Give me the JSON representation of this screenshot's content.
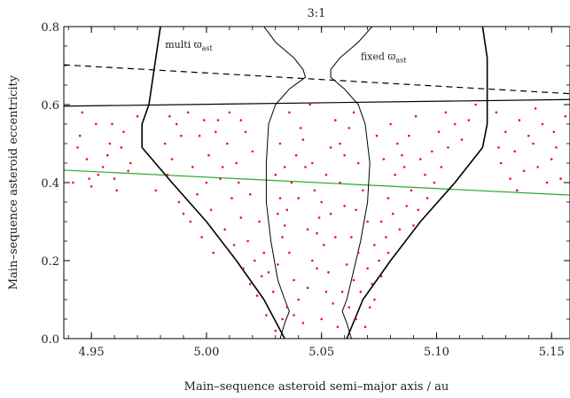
{
  "chart_data": {
    "type": "scatter",
    "title": "3:1",
    "xlabel": "Main–sequence asteroid semi–major axis / au",
    "ylabel": "Main–sequence asteroid eccentricity",
    "xlim": [
      4.938,
      5.158
    ],
    "ylim": [
      0.0,
      0.8
    ],
    "x_ticks": [
      4.95,
      5.0,
      5.05,
      5.1,
      5.15
    ],
    "x_tick_labels": [
      "4.95",
      "5.00",
      "5.05",
      "5.10",
      "5.15"
    ],
    "y_ticks": [
      0.0,
      0.2,
      0.4,
      0.6,
      0.8
    ],
    "y_tick_labels": [
      "0.0",
      "0.2",
      "0.4",
      "0.6",
      "0.8"
    ],
    "annotations": [
      {
        "text": "multi ϖ",
        "sub": "ast",
        "x": 4.982,
        "y": 0.745
      },
      {
        "text": "fixed ϖ",
        "sub": "ast",
        "x": 5.067,
        "y": 0.715
      }
    ],
    "colors": {
      "points": "#e8141c",
      "green_line": "#27a827",
      "lines": "#000000"
    },
    "lines": [
      {
        "style": "dashed",
        "color": "#000000",
        "points": [
          [
            4.938,
            0.702
          ],
          [
            5.158,
            0.628
          ]
        ]
      },
      {
        "style": "solid",
        "color": "#000000",
        "points": [
          [
            4.938,
            0.596
          ],
          [
            5.158,
            0.613
          ]
        ]
      },
      {
        "style": "solid",
        "color": "#27a827",
        "points": [
          [
            4.938,
            0.432
          ],
          [
            5.158,
            0.368
          ]
        ]
      }
    ],
    "boundaries": [
      {
        "name": "multi-left",
        "width": 1.6,
        "points": [
          [
            4.98,
            0.8
          ],
          [
            4.978,
            0.72
          ],
          [
            4.975,
            0.6
          ],
          [
            4.972,
            0.55
          ],
          [
            4.972,
            0.49
          ],
          [
            4.985,
            0.4
          ],
          [
            5.0,
            0.3
          ],
          [
            5.013,
            0.2
          ],
          [
            5.025,
            0.1
          ],
          [
            5.034,
            0.0
          ]
        ]
      },
      {
        "name": "multi-right",
        "width": 1.6,
        "points": [
          [
            5.12,
            0.8
          ],
          [
            5.122,
            0.72
          ],
          [
            5.122,
            0.6
          ],
          [
            5.122,
            0.55
          ],
          [
            5.12,
            0.49
          ],
          [
            5.108,
            0.4
          ],
          [
            5.093,
            0.3
          ],
          [
            5.08,
            0.2
          ],
          [
            5.068,
            0.1
          ],
          [
            5.061,
            0.0
          ]
        ]
      },
      {
        "name": "fixed-left",
        "width": 1.0,
        "points": [
          [
            5.025,
            0.8
          ],
          [
            5.03,
            0.76
          ],
          [
            5.038,
            0.72
          ],
          [
            5.042,
            0.69
          ],
          [
            5.043,
            0.67
          ],
          [
            5.036,
            0.64
          ],
          [
            5.03,
            0.6
          ],
          [
            5.027,
            0.55
          ],
          [
            5.026,
            0.45
          ],
          [
            5.026,
            0.35
          ],
          [
            5.028,
            0.25
          ],
          [
            5.031,
            0.15
          ],
          [
            5.034,
            0.1
          ],
          [
            5.036,
            0.07
          ],
          [
            5.034,
            0.04
          ],
          [
            5.032,
            0.0
          ]
        ]
      },
      {
        "name": "fixed-right",
        "width": 1.0,
        "points": [
          [
            5.072,
            0.8
          ],
          [
            5.066,
            0.76
          ],
          [
            5.058,
            0.72
          ],
          [
            5.054,
            0.69
          ],
          [
            5.054,
            0.67
          ],
          [
            5.06,
            0.64
          ],
          [
            5.066,
            0.6
          ],
          [
            5.069,
            0.55
          ],
          [
            5.071,
            0.45
          ],
          [
            5.07,
            0.35
          ],
          [
            5.067,
            0.25
          ],
          [
            5.063,
            0.15
          ],
          [
            5.061,
            0.1
          ],
          [
            5.059,
            0.07
          ],
          [
            5.061,
            0.04
          ],
          [
            5.063,
            0.0
          ]
        ]
      }
    ],
    "series": [
      {
        "values": [
          [
            4.945,
            0.52
          ],
          [
            4.952,
            0.55
          ],
          [
            4.958,
            0.5
          ],
          [
            4.963,
            0.49
          ],
          [
            4.948,
            0.46
          ],
          [
            4.955,
            0.44
          ],
          [
            4.96,
            0.41
          ],
          [
            4.966,
            0.43
          ],
          [
            4.942,
            0.4
          ],
          [
            4.95,
            0.39
          ],
          [
            4.957,
            0.47
          ],
          [
            4.964,
            0.53
          ],
          [
            4.97,
            0.57
          ],
          [
            4.946,
            0.58
          ],
          [
            4.953,
            0.42
          ],
          [
            4.961,
            0.38
          ],
          [
            4.967,
            0.45
          ],
          [
            4.944,
            0.49
          ],
          [
            4.959,
            0.55
          ],
          [
            4.949,
            0.41
          ],
          [
            4.978,
            0.38
          ],
          [
            4.983,
            0.42
          ],
          [
            4.988,
            0.35
          ],
          [
            4.993,
            0.3
          ],
          [
            4.998,
            0.26
          ],
          [
            5.003,
            0.22
          ],
          [
            4.99,
            0.32
          ],
          [
            4.996,
            0.37
          ],
          [
            5.002,
            0.33
          ],
          [
            5.008,
            0.28
          ],
          [
            5.012,
            0.24
          ],
          [
            5.016,
            0.18
          ],
          [
            5.019,
            0.14
          ],
          [
            5.022,
            0.11
          ],
          [
            5.006,
            0.41
          ],
          [
            5.011,
            0.36
          ],
          [
            5.015,
            0.31
          ],
          [
            5.018,
            0.25
          ],
          [
            5.021,
            0.2
          ],
          [
            5.024,
            0.16
          ],
          [
            4.982,
            0.5
          ],
          [
            4.987,
            0.55
          ],
          [
            4.992,
            0.58
          ],
          [
            4.997,
            0.52
          ],
          [
            5.001,
            0.47
          ],
          [
            5.005,
            0.56
          ],
          [
            5.009,
            0.5
          ],
          [
            5.013,
            0.45
          ],
          [
            5.017,
            0.53
          ],
          [
            5.02,
            0.48
          ],
          [
            4.985,
            0.46
          ],
          [
            4.994,
            0.44
          ],
          [
            5.0,
            0.4
          ],
          [
            5.007,
            0.44
          ],
          [
            5.014,
            0.4
          ],
          [
            5.019,
            0.37
          ],
          [
            5.023,
            0.3
          ],
          [
            5.025,
            0.22
          ],
          [
            5.027,
            0.17
          ],
          [
            5.026,
            0.06
          ],
          [
            5.03,
            0.02
          ],
          [
            5.033,
            0.05
          ],
          [
            5.035,
            0.08
          ],
          [
            5.029,
            0.12
          ],
          [
            5.031,
            0.19
          ],
          [
            5.033,
            0.26
          ],
          [
            5.035,
            0.33
          ],
          [
            5.037,
            0.4
          ],
          [
            5.039,
            0.47
          ],
          [
            5.041,
            0.54
          ],
          [
            5.036,
            0.58
          ],
          [
            5.032,
            0.5
          ],
          [
            5.03,
            0.42
          ],
          [
            5.032,
            0.36
          ],
          [
            5.034,
            0.29
          ],
          [
            5.036,
            0.22
          ],
          [
            5.038,
            0.15
          ],
          [
            5.04,
            0.1
          ],
          [
            5.042,
            0.04
          ],
          [
            5.044,
            0.13
          ],
          [
            5.046,
            0.2
          ],
          [
            5.048,
            0.27
          ],
          [
            5.05,
            0.35
          ],
          [
            5.052,
            0.42
          ],
          [
            5.054,
            0.49
          ],
          [
            5.056,
            0.56
          ],
          [
            5.045,
            0.6
          ],
          [
            5.043,
            0.44
          ],
          [
            5.047,
            0.38
          ],
          [
            5.049,
            0.31
          ],
          [
            5.051,
            0.24
          ],
          [
            5.053,
            0.17
          ],
          [
            5.055,
            0.09
          ],
          [
            5.057,
            0.03
          ],
          [
            5.059,
            0.12
          ],
          [
            5.061,
            0.19
          ],
          [
            5.063,
            0.26
          ],
          [
            5.065,
            0.33
          ],
          [
            5.058,
            0.4
          ],
          [
            5.06,
            0.47
          ],
          [
            5.062,
            0.54
          ],
          [
            5.064,
            0.58
          ],
          [
            5.066,
            0.45
          ],
          [
            5.068,
            0.38
          ],
          [
            5.07,
            0.3
          ],
          [
            5.066,
            0.22
          ],
          [
            5.064,
            0.15
          ],
          [
            5.062,
            0.08
          ],
          [
            5.065,
            0.05
          ],
          [
            5.067,
            0.12
          ],
          [
            5.07,
            0.18
          ],
          [
            5.073,
            0.24
          ],
          [
            5.076,
            0.3
          ],
          [
            5.079,
            0.36
          ],
          [
            5.082,
            0.42
          ],
          [
            5.085,
            0.47
          ],
          [
            5.088,
            0.52
          ],
          [
            5.091,
            0.57
          ],
          [
            5.074,
            0.52
          ],
          [
            5.077,
            0.46
          ],
          [
            5.08,
            0.55
          ],
          [
            5.083,
            0.5
          ],
          [
            5.086,
            0.44
          ],
          [
            5.089,
            0.38
          ],
          [
            5.092,
            0.33
          ],
          [
            5.095,
            0.42
          ],
          [
            5.098,
            0.48
          ],
          [
            5.101,
            0.53
          ],
          [
            5.104,
            0.58
          ],
          [
            5.093,
            0.46
          ],
          [
            5.096,
            0.36
          ],
          [
            5.099,
            0.4
          ],
          [
            5.102,
            0.44
          ],
          [
            5.105,
            0.49
          ],
          [
            5.108,
            0.55
          ],
          [
            5.111,
            0.51
          ],
          [
            5.114,
            0.56
          ],
          [
            5.117,
            0.6
          ],
          [
            5.072,
            0.14
          ],
          [
            5.075,
            0.2
          ],
          [
            5.078,
            0.26
          ],
          [
            5.081,
            0.32
          ],
          [
            5.084,
            0.28
          ],
          [
            5.087,
            0.34
          ],
          [
            5.09,
            0.29
          ],
          [
            5.071,
            0.08
          ],
          [
            5.069,
            0.03
          ],
          [
            5.073,
            0.1
          ],
          [
            5.076,
            0.16
          ],
          [
            5.079,
            0.22
          ],
          [
            5.126,
            0.58
          ],
          [
            5.13,
            0.53
          ],
          [
            5.134,
            0.48
          ],
          [
            5.138,
            0.43
          ],
          [
            5.142,
            0.5
          ],
          [
            5.146,
            0.55
          ],
          [
            5.15,
            0.46
          ],
          [
            5.154,
            0.41
          ],
          [
            5.128,
            0.45
          ],
          [
            5.132,
            0.41
          ],
          [
            5.136,
            0.56
          ],
          [
            5.14,
            0.52
          ],
          [
            5.144,
            0.44
          ],
          [
            5.148,
            0.4
          ],
          [
            5.152,
            0.49
          ],
          [
            5.156,
            0.57
          ],
          [
            5.127,
            0.49
          ],
          [
            5.135,
            0.38
          ],
          [
            5.143,
            0.59
          ],
          [
            5.151,
            0.53
          ],
          [
            5.01,
            0.58
          ],
          [
            5.015,
            0.56
          ],
          [
            5.004,
            0.53
          ],
          [
            4.999,
            0.56
          ],
          [
            4.989,
            0.52
          ],
          [
            4.984,
            0.57
          ],
          [
            5.04,
            0.36
          ],
          [
            5.044,
            0.28
          ],
          [
            5.048,
            0.18
          ],
          [
            5.052,
            0.12
          ],
          [
            5.056,
            0.26
          ],
          [
            5.06,
            0.34
          ],
          [
            5.038,
            0.06
          ],
          [
            5.05,
            0.05
          ],
          [
            5.054,
            0.32
          ],
          [
            5.058,
            0.5
          ],
          [
            5.042,
            0.51
          ],
          [
            5.046,
            0.45
          ],
          [
            5.034,
            0.44
          ],
          [
            5.031,
            0.32
          ]
        ]
      }
    ]
  }
}
